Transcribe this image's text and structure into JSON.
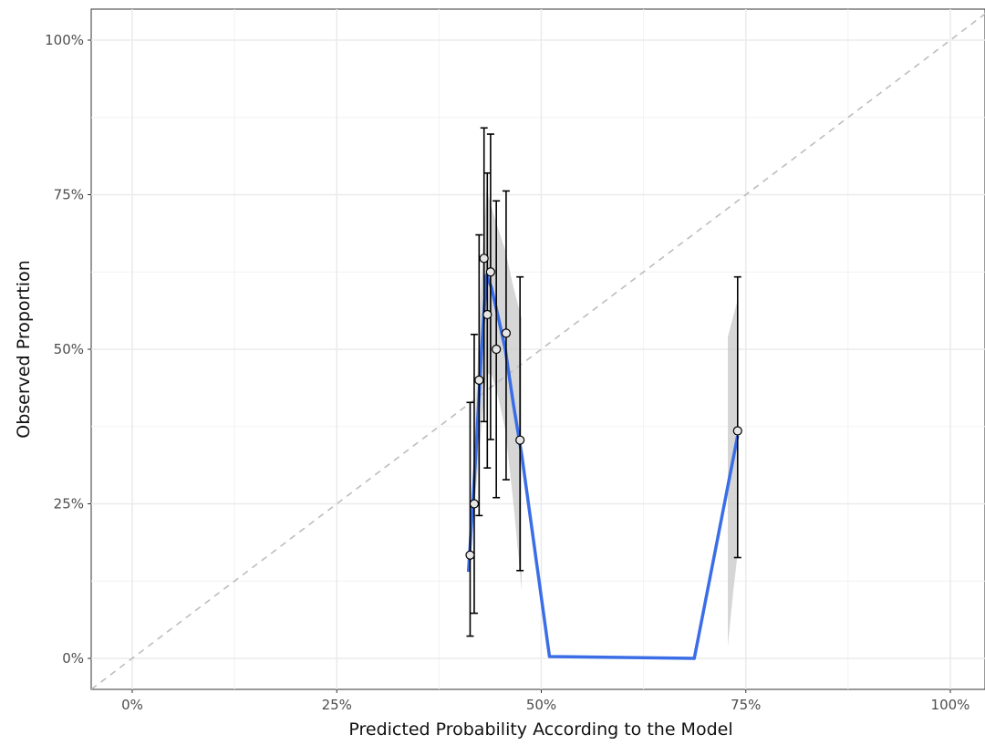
{
  "chart_data": {
    "type": "scatter",
    "title": "",
    "xlabel": "Predicted Probability According to the Model",
    "ylabel": "Observed Proportion",
    "xlim": [
      -0.05,
      1.05
    ],
    "ylim": [
      -0.05,
      1.05
    ],
    "x_ticks": [
      0,
      0.25,
      0.5,
      0.75,
      1.0
    ],
    "x_tick_labels": [
      "0%",
      "25%",
      "50%",
      "75%",
      "100%"
    ],
    "y_ticks": [
      0,
      0.25,
      0.5,
      0.75,
      1.0
    ],
    "y_tick_labels": [
      "0%",
      "25%",
      "50%",
      "75%",
      "100%"
    ],
    "grid": true,
    "reference_line": {
      "from": [
        0,
        0
      ],
      "to": [
        1,
        1
      ],
      "style": "dashed",
      "color": "#bdbdbd"
    },
    "points": [
      {
        "x": 0.413,
        "y": 0.167,
        "lower": 0.036,
        "upper": 0.414
      },
      {
        "x": 0.418,
        "y": 0.25,
        "lower": 0.073,
        "upper": 0.524
      },
      {
        "x": 0.424,
        "y": 0.45,
        "lower": 0.231,
        "upper": 0.685
      },
      {
        "x": 0.43,
        "y": 0.647,
        "lower": 0.383,
        "upper": 0.858
      },
      {
        "x": 0.434,
        "y": 0.556,
        "lower": 0.308,
        "upper": 0.785
      },
      {
        "x": 0.438,
        "y": 0.625,
        "lower": 0.354,
        "upper": 0.848
      },
      {
        "x": 0.445,
        "y": 0.5,
        "lower": 0.26,
        "upper": 0.74
      },
      {
        "x": 0.457,
        "y": 0.526,
        "lower": 0.289,
        "upper": 0.756
      },
      {
        "x": 0.474,
        "y": 0.353,
        "lower": 0.142,
        "upper": 0.617
      },
      {
        "x": 0.74,
        "y": 0.368,
        "lower": 0.163,
        "upper": 0.617
      }
    ],
    "smooth_line": {
      "color": "#3b6ee6",
      "x": [
        0.411,
        0.42,
        0.427,
        0.433,
        0.439,
        0.446,
        0.456,
        0.466,
        0.476,
        0.51,
        0.687,
        0.74
      ],
      "y": [
        0.14,
        0.33,
        0.5,
        0.62,
        0.6,
        0.56,
        0.5,
        0.41,
        0.33,
        0.003,
        0.0,
        0.36
      ]
    },
    "confidence_band": {
      "color": "#c8c8c8",
      "segments": [
        {
          "x": [
            0.411,
            0.42,
            0.427,
            0.433,
            0.439,
            0.446,
            0.456,
            0.466,
            0.476
          ],
          "lower": [
            0.14,
            0.27,
            0.38,
            0.46,
            0.46,
            0.43,
            0.37,
            0.25,
            0.11
          ],
          "upper": [
            0.14,
            0.41,
            0.62,
            0.76,
            0.73,
            0.7,
            0.66,
            0.6,
            0.55
          ]
        },
        {
          "x": [
            0.728,
            0.734,
            0.74
          ],
          "lower": [
            0.02,
            0.1,
            0.17
          ],
          "upper": [
            0.52,
            0.55,
            0.58
          ]
        }
      ]
    }
  }
}
